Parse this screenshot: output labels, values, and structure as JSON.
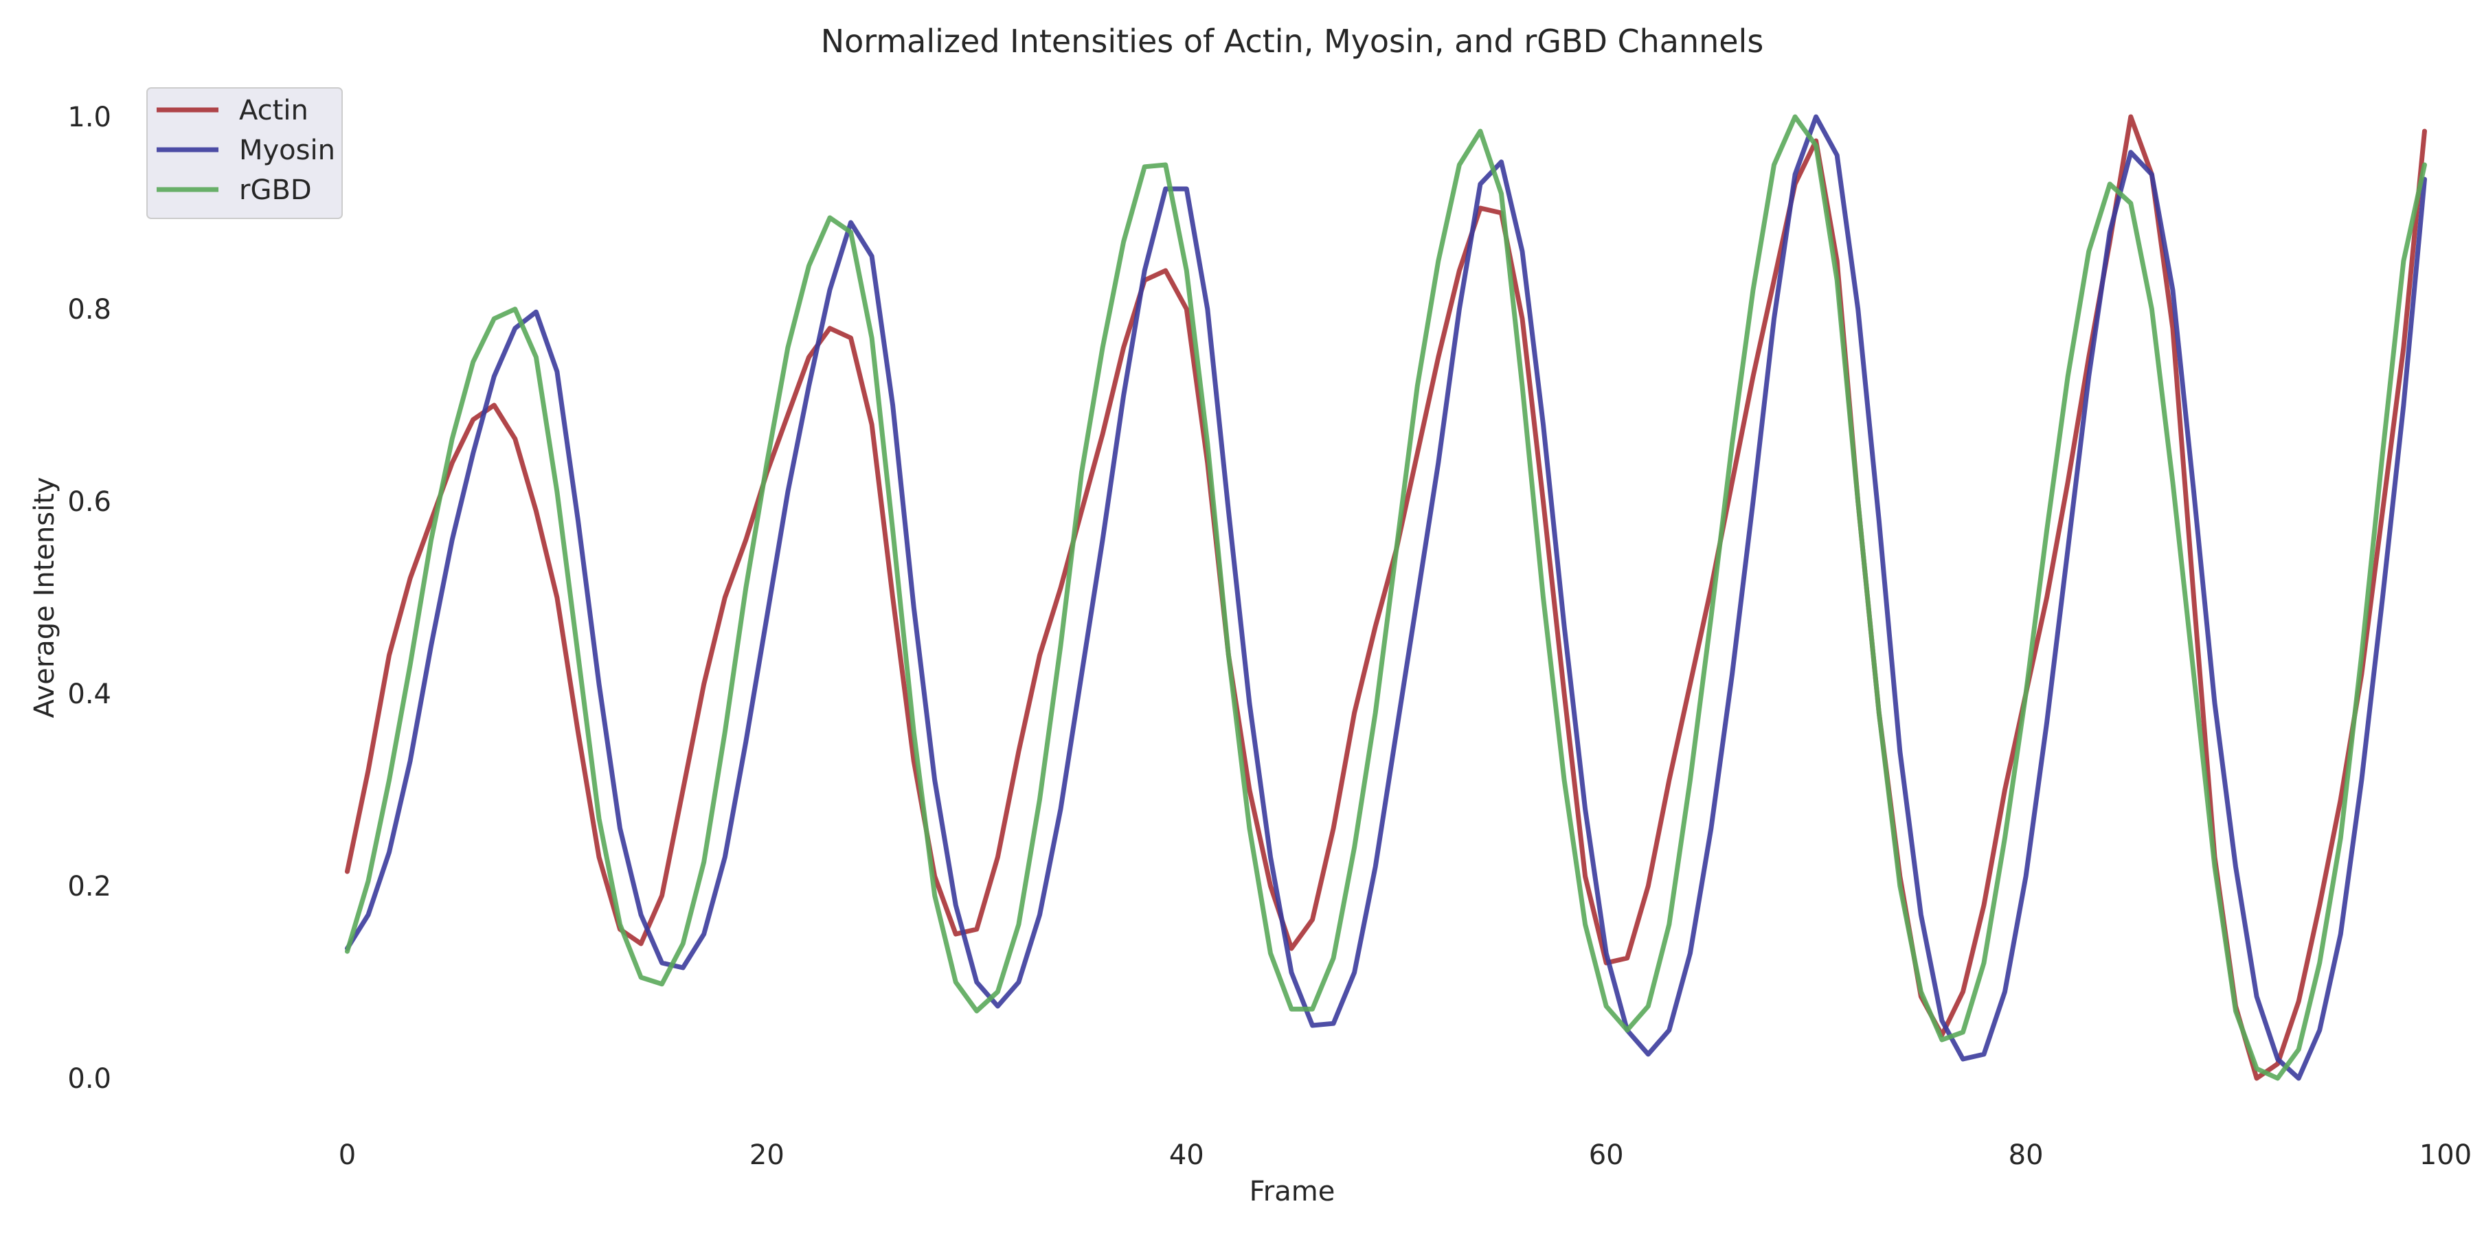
{
  "chart_data": {
    "type": "line",
    "title": "Normalized Intensities of Actin, Myosin, and rGBD Channels",
    "xlabel": "Frame",
    "ylabel": "Average Intensity",
    "xlim": [
      -10,
      100
    ],
    "ylim": [
      -0.05,
      1.05
    ],
    "xticks": [
      0,
      20,
      40,
      60,
      80,
      100
    ],
    "yticks": [
      0.0,
      0.2,
      0.4,
      0.6,
      0.8,
      1.0
    ],
    "xtick_labels": [
      "0",
      "20",
      "40",
      "60",
      "80",
      "100"
    ],
    "ytick_labels": [
      "0.0",
      "0.2",
      "0.4",
      "0.6",
      "0.8",
      "1.0"
    ],
    "grid": false,
    "legend": "top-left",
    "x": [
      0,
      1,
      2,
      3,
      4,
      5,
      6,
      7,
      8,
      9,
      10,
      11,
      12,
      13,
      14,
      15,
      16,
      17,
      18,
      19,
      20,
      21,
      22,
      23,
      24,
      25,
      26,
      27,
      28,
      29,
      30,
      31,
      32,
      33,
      34,
      35,
      36,
      37,
      38,
      39,
      40,
      41,
      42,
      43,
      44,
      45,
      46,
      47,
      48,
      49,
      50,
      51,
      52,
      53,
      54,
      55,
      56,
      57,
      58,
      59,
      60,
      61,
      62,
      63,
      64,
      65,
      66,
      67,
      68,
      69,
      70,
      71,
      72,
      73,
      74,
      75,
      76,
      77,
      78,
      79,
      80,
      81,
      82,
      83,
      84,
      85,
      86,
      87,
      88,
      89,
      90,
      91,
      92,
      93,
      94,
      95,
      96,
      97,
      98,
      99
    ],
    "series": [
      {
        "name": "Actin",
        "color": "#a83236",
        "values": [
          0.215,
          0.32,
          0.44,
          0.52,
          0.58,
          0.64,
          0.685,
          0.7,
          0.665,
          0.59,
          0.5,
          0.36,
          0.23,
          0.155,
          0.14,
          0.19,
          0.3,
          0.41,
          0.5,
          0.56,
          0.63,
          0.69,
          0.75,
          0.78,
          0.77,
          0.68,
          0.5,
          0.33,
          0.21,
          0.15,
          0.155,
          0.23,
          0.34,
          0.44,
          0.51,
          0.59,
          0.67,
          0.76,
          0.83,
          0.84,
          0.8,
          0.64,
          0.44,
          0.3,
          0.2,
          0.135,
          0.165,
          0.26,
          0.38,
          0.47,
          0.55,
          0.65,
          0.75,
          0.84,
          0.905,
          0.9,
          0.79,
          0.6,
          0.4,
          0.21,
          0.12,
          0.125,
          0.2,
          0.31,
          0.41,
          0.51,
          0.62,
          0.73,
          0.83,
          0.93,
          0.975,
          0.85,
          0.6,
          0.38,
          0.21,
          0.085,
          0.045,
          0.09,
          0.18,
          0.3,
          0.4,
          0.5,
          0.62,
          0.75,
          0.87,
          1.0,
          0.94,
          0.78,
          0.5,
          0.23,
          0.075,
          0.0,
          0.015,
          0.08,
          0.18,
          0.29,
          0.42,
          0.59,
          0.76,
          0.985
        ]
      },
      {
        "name": "Myosin",
        "color": "#3b3b9c",
        "values": [
          0.135,
          0.17,
          0.235,
          0.33,
          0.45,
          0.56,
          0.65,
          0.73,
          0.78,
          0.797,
          0.735,
          0.58,
          0.41,
          0.26,
          0.17,
          0.12,
          0.115,
          0.15,
          0.23,
          0.35,
          0.48,
          0.61,
          0.72,
          0.82,
          0.89,
          0.855,
          0.7,
          0.49,
          0.31,
          0.18,
          0.1,
          0.075,
          0.1,
          0.17,
          0.28,
          0.42,
          0.56,
          0.71,
          0.84,
          0.925,
          0.925,
          0.8,
          0.59,
          0.39,
          0.23,
          0.11,
          0.055,
          0.057,
          0.11,
          0.22,
          0.36,
          0.5,
          0.64,
          0.8,
          0.93,
          0.953,
          0.86,
          0.68,
          0.47,
          0.28,
          0.13,
          0.05,
          0.025,
          0.05,
          0.13,
          0.26,
          0.42,
          0.6,
          0.79,
          0.94,
          1.0,
          0.96,
          0.8,
          0.58,
          0.34,
          0.17,
          0.06,
          0.02,
          0.025,
          0.09,
          0.21,
          0.37,
          0.55,
          0.73,
          0.88,
          0.963,
          0.94,
          0.82,
          0.61,
          0.39,
          0.22,
          0.085,
          0.02,
          0.0,
          0.05,
          0.15,
          0.31,
          0.5,
          0.7,
          0.935
        ]
      },
      {
        "name": "rGBD",
        "color": "#5aa85a",
        "values": [
          0.132,
          0.205,
          0.31,
          0.43,
          0.56,
          0.665,
          0.745,
          0.79,
          0.8,
          0.75,
          0.61,
          0.44,
          0.27,
          0.16,
          0.105,
          0.098,
          0.14,
          0.225,
          0.36,
          0.51,
          0.64,
          0.76,
          0.845,
          0.895,
          0.88,
          0.77,
          0.57,
          0.36,
          0.19,
          0.1,
          0.07,
          0.09,
          0.16,
          0.29,
          0.45,
          0.63,
          0.76,
          0.87,
          0.948,
          0.95,
          0.84,
          0.66,
          0.44,
          0.26,
          0.13,
          0.072,
          0.072,
          0.125,
          0.24,
          0.38,
          0.55,
          0.72,
          0.85,
          0.95,
          0.985,
          0.92,
          0.72,
          0.5,
          0.31,
          0.16,
          0.075,
          0.05,
          0.075,
          0.16,
          0.31,
          0.48,
          0.66,
          0.82,
          0.95,
          1.0,
          0.97,
          0.83,
          0.6,
          0.38,
          0.2,
          0.09,
          0.04,
          0.048,
          0.12,
          0.25,
          0.4,
          0.57,
          0.73,
          0.86,
          0.93,
          0.91,
          0.8,
          0.62,
          0.42,
          0.22,
          0.07,
          0.01,
          0.0,
          0.03,
          0.12,
          0.25,
          0.44,
          0.65,
          0.85,
          0.95
        ]
      }
    ]
  }
}
